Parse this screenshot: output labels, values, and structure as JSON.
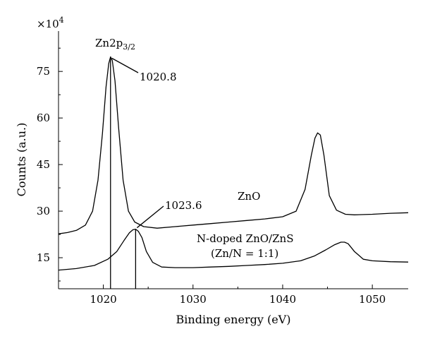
{
  "chart_data": {
    "type": "line",
    "xlabel": "Binding energy (eV)",
    "ylabel": "Counts (a.u.)",
    "y_multiplier": "×10",
    "y_multiplier_exp": "4",
    "xlim": [
      1015,
      1054
    ],
    "ylim": [
      5,
      88
    ],
    "x_ticks": [
      1020,
      1030,
      1040,
      1050
    ],
    "y_ticks": [
      15,
      30,
      45,
      60,
      75
    ],
    "grid": false,
    "series": [
      {
        "name": "ZnO",
        "x": [
          1015,
          1016,
          1017,
          1018,
          1018.8,
          1019.4,
          1019.9,
          1020.3,
          1020.6,
          1020.8,
          1021.0,
          1021.3,
          1021.7,
          1022.2,
          1022.8,
          1023.5,
          1024.5,
          1026,
          1028,
          1030,
          1032,
          1034,
          1036,
          1038,
          1040,
          1041.5,
          1042.5,
          1043.2,
          1043.6,
          1043.9,
          1044.2,
          1044.6,
          1045.2,
          1046,
          1047,
          1048,
          1050,
          1052,
          1054
        ],
        "y": [
          22.7,
          23.1,
          23.8,
          25.5,
          30,
          40,
          55,
          70,
          77.5,
          79.7,
          78.5,
          72,
          57,
          40,
          30,
          26.5,
          25,
          24.5,
          25,
          25.5,
          26,
          26.5,
          27,
          27.5,
          28.2,
          30,
          37,
          48,
          53.5,
          55.2,
          54.5,
          48,
          35,
          30.3,
          29,
          28.8,
          29,
          29.3,
          29.5
        ]
      },
      {
        "name": "N-doped ZnO/ZnS",
        "subname": "(Zn/N = 1:1)",
        "x": [
          1015,
          1017,
          1019,
          1020.5,
          1021.5,
          1022.3,
          1022.9,
          1023.3,
          1023.6,
          1023.9,
          1024.3,
          1024.8,
          1025.5,
          1026.5,
          1028,
          1030,
          1032,
          1034,
          1036,
          1038,
          1040,
          1042,
          1043.5,
          1044.8,
          1045.8,
          1046.5,
          1046.9,
          1047.3,
          1048,
          1049,
          1050,
          1052,
          1054
        ],
        "y": [
          11,
          11.5,
          12.5,
          14.5,
          17,
          20.5,
          23,
          24,
          24.2,
          23.5,
          21.5,
          17,
          13.5,
          12,
          11.8,
          11.8,
          12,
          12.2,
          12.5,
          12.8,
          13.2,
          14,
          15.5,
          17.5,
          19.2,
          20,
          20,
          19.5,
          17,
          14.5,
          14,
          13.7,
          13.6
        ]
      }
    ],
    "annotations": [
      {
        "id": "zn2p",
        "text": "Zn2p",
        "subscript": "3/2"
      },
      {
        "id": "peak1",
        "text": "1020.8",
        "x": 1020.8,
        "y": 79.7
      },
      {
        "id": "peak2",
        "text": "1023.6",
        "x": 1023.6,
        "y": 24.2
      }
    ],
    "series_labels": {
      "zno": "ZnO",
      "ndoped_line1": "N-doped ZnO/ZnS",
      "ndoped_line2": "(Zn/N = 1:1)"
    }
  }
}
